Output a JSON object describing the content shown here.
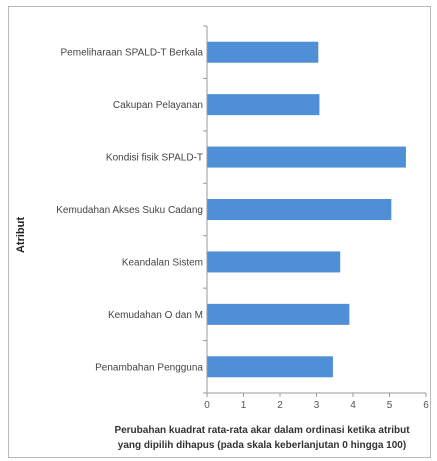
{
  "chart_data": {
    "type": "bar",
    "orientation": "horizontal",
    "categories": [
      "Pemeliharaan SPALD-T Berkala",
      "Cakupan Pelayanan",
      "Kondisi fisik SPALD-T",
      "Kemudahan Akses Suku Cadang",
      "Keandalan Sistem",
      "Kemudahan O dan M",
      "Penambahan Pengguna"
    ],
    "values": [
      3.05,
      3.08,
      5.45,
      5.05,
      3.65,
      3.9,
      3.45
    ],
    "xlim": [
      0,
      6
    ],
    "xticks": [
      "0",
      "1",
      "2",
      "3",
      "4",
      "5",
      "6"
    ],
    "ylabel": "Atribut",
    "xlabel_line1": "Perubahan kuadrat rata-rata akar dalam ordinasi ketika atribut",
    "xlabel_line2": "yang dipilih dihapus (pada skala keberlanjutan 0 hingga 100)",
    "bar_color": "#4f8fd6",
    "grid": false
  }
}
